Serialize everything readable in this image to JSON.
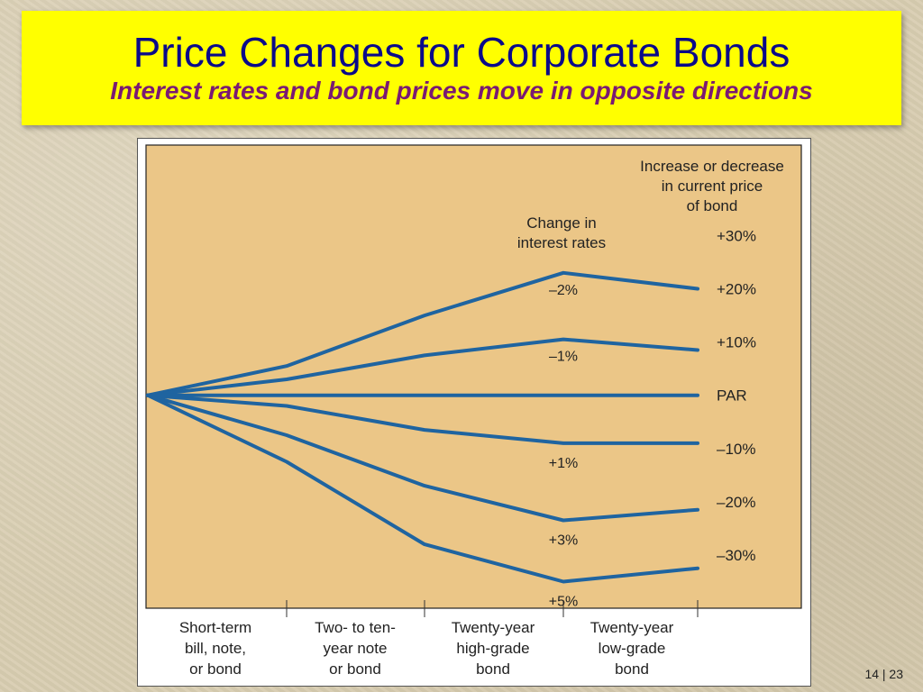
{
  "slide": {
    "title": "Price Changes for Corporate Bonds",
    "subtitle": "Interest rates and bond prices move in opposite directions",
    "page_number": "14 | 23"
  },
  "colors": {
    "title_box": "#ffff00",
    "title_text": "#0a0a8a",
    "subtitle_text": "#7a1a73",
    "plot_background": "#ebc687",
    "line": "#1f64a0"
  },
  "chart_data": {
    "type": "line",
    "title": "",
    "categories": [
      "Short-term\nbill, note,\nor bond",
      "Two- to ten-\nyear note\nor bond",
      "Twenty-year\nhigh-grade\nbond",
      "Twenty-year\nlow-grade\nbond"
    ],
    "x": [
      0,
      1,
      2,
      3,
      4
    ],
    "series_header": "Change in\ninterest rates",
    "right_axis_title": "Increase or decrease\nin current price\nof bond",
    "right_axis_ticks": [
      "+30%",
      "+20%",
      "+10%",
      "PAR",
      "–10%",
      "–20%",
      "–30%"
    ],
    "right_axis_values": [
      30,
      20,
      10,
      0,
      -10,
      -20,
      -30
    ],
    "ylim": [
      -40,
      47
    ],
    "series": [
      {
        "name": "–2%",
        "values": [
          0,
          5.5,
          15,
          23,
          20
        ]
      },
      {
        "name": "–1%",
        "values": [
          0,
          3,
          7.5,
          10.5,
          8.5
        ]
      },
      {
        "name": "",
        "values": [
          0,
          0,
          0,
          0,
          0
        ]
      },
      {
        "name": "+1%",
        "values": [
          0,
          -2,
          -6.5,
          -9,
          -9
        ]
      },
      {
        "name": "+3%",
        "values": [
          0,
          -7.5,
          -17,
          -23.5,
          -21.5
        ]
      },
      {
        "name": "+5%",
        "values": [
          0,
          -12.5,
          -28,
          -35,
          -32.5
        ]
      }
    ],
    "grid": false,
    "legend": "inline labels at peak points"
  }
}
